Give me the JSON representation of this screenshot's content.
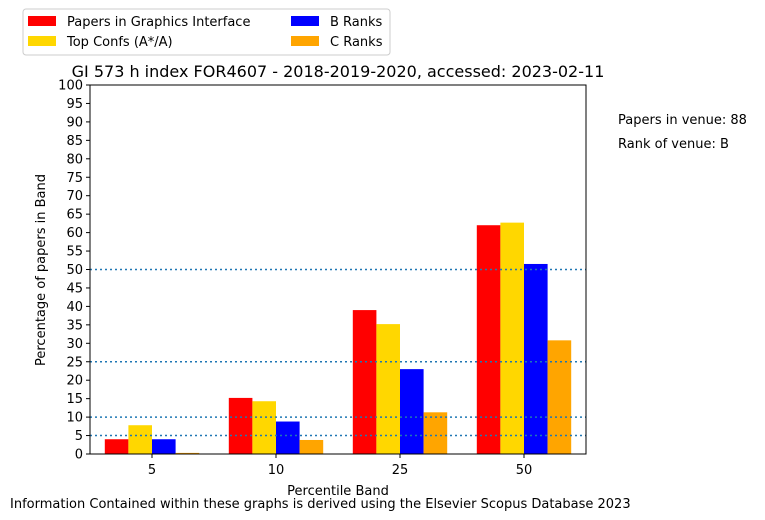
{
  "chart_data": {
    "type": "bar",
    "title": "GI 573 h index FOR4607 - 2018-2019-2020, accessed: 2023-02-11",
    "xlabel": "Percentile Band",
    "ylabel": "Percentage of papers in Band",
    "categories": [
      "5",
      "10",
      "25",
      "50"
    ],
    "ylim": [
      0,
      100
    ],
    "yticks": [
      0,
      5,
      10,
      15,
      20,
      25,
      30,
      35,
      40,
      45,
      50,
      55,
      60,
      65,
      70,
      75,
      80,
      85,
      90,
      95,
      100
    ],
    "series": [
      {
        "name": "Papers in Graphics Interface",
        "color": "#ff0000",
        "values": [
          4.0,
          15.2,
          39.0,
          62.0
        ]
      },
      {
        "name": "Top Confs (A*/A)",
        "color": "#ffd700",
        "values": [
          7.8,
          14.3,
          35.2,
          62.7
        ]
      },
      {
        "name": "B Ranks",
        "color": "#0000ff",
        "values": [
          4.0,
          8.8,
          23.0,
          51.5
        ]
      },
      {
        "name": "C Ranks",
        "color": "#ffa500",
        "values": [
          0.3,
          3.8,
          11.3,
          30.8
        ]
      }
    ],
    "reference_lines": [
      5,
      10,
      25,
      50
    ],
    "reference_line_color": "#1f77b4",
    "legend_position": "top-left",
    "grid": false,
    "side_notes": [
      "Papers in venue: 88",
      "Rank of venue: B"
    ],
    "footer": "Information Contained within these graphs is derived using the Elsevier Scopus Database 2023"
  }
}
